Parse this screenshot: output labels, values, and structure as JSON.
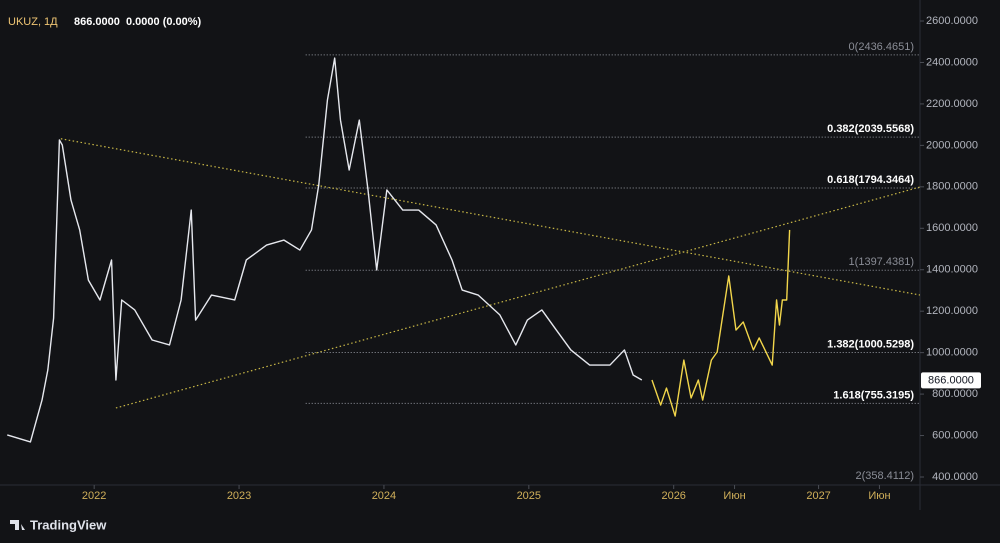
{
  "header": {
    "symbol": "UKUZ, 1Д",
    "last": "866.0000",
    "change": "0.0000 (0.00%)"
  },
  "branding": {
    "logo": "TradingView"
  },
  "chart_data": {
    "type": "line",
    "xlim": [
      2021.35,
      2027.7
    ],
    "ylim": [
      361.4,
      2662.8
    ],
    "xticks": [
      2022,
      2023,
      2024,
      2025,
      2026,
      {
        "value": 2026.42,
        "label": "Июн"
      },
      2027,
      {
        "value": 2027.42,
        "label": "Июн"
      }
    ],
    "yticks": [
      {
        "value": 2600,
        "label": "2600.0000"
      },
      {
        "value": 2400,
        "label": "2400.0000"
      },
      {
        "value": 2200,
        "label": "2200.0000"
      },
      {
        "value": 2000,
        "label": "2000.0000"
      },
      {
        "value": 1800,
        "label": "1800.0000"
      },
      {
        "value": 1600,
        "label": "1600.0000"
      },
      {
        "value": 1400,
        "label": "1400.0000"
      },
      {
        "value": 1200,
        "label": "1200.0000"
      },
      {
        "value": 1000,
        "label": "1000.0000"
      },
      {
        "value": 800,
        "label": "800.0000"
      },
      {
        "value": 600,
        "label": "600.0000"
      },
      {
        "value": 400,
        "label": "400.0000"
      }
    ],
    "series": [
      {
        "color": "#e6e8ee",
        "x": [
          2021.4,
          2021.56,
          2021.64,
          2021.68,
          2021.72,
          2021.76,
          2021.78,
          2021.84,
          2021.9,
          2021.96,
          2022.04,
          2022.12,
          2022.15,
          2022.19,
          2022.28,
          2022.4,
          2022.52,
          2022.6,
          2022.67,
          2022.7,
          2022.81,
          2022.97,
          2023.05,
          2023.19,
          2023.31,
          2023.42,
          2023.5,
          2023.55,
          2023.61,
          2023.66,
          2023.7,
          2023.76,
          2023.83,
          2023.89,
          2023.95,
          2024.02,
          2024.13,
          2024.24,
          2024.36,
          2024.47,
          2024.54,
          2024.65,
          2024.8,
          2024.91,
          2024.99,
          2025.09,
          2025.19,
          2025.29,
          2025.42,
          2025.56,
          2025.66,
          2025.72,
          2025.78
        ],
        "values": [
          603,
          569,
          771,
          916,
          1167,
          2026,
          2002,
          1736,
          1592,
          1350,
          1254,
          1447,
          868,
          1254,
          1206,
          1061,
          1037,
          1254,
          1688,
          1157,
          1278,
          1254,
          1447,
          1519,
          1543,
          1495,
          1592,
          1809,
          2219,
          2421,
          2122,
          1881,
          2122,
          1785,
          1399,
          1785,
          1688,
          1688,
          1616,
          1447,
          1302,
          1278,
          1182,
          1037,
          1157,
          1206,
          1109,
          1013,
          940,
          940,
          1013,
          892,
          868
        ]
      },
      {
        "color": "#f2d64b",
        "x": [
          2025.85,
          2025.91,
          2025.95,
          2026.01,
          2026.07,
          2026.12,
          2026.17,
          2026.2,
          2026.26,
          2026.3,
          2026.38,
          2026.43,
          2026.48,
          2026.55,
          2026.59,
          2026.63,
          2026.68,
          2026.71,
          2026.73,
          2026.75,
          2026.78,
          2026.8
        ],
        "values": [
          868,
          747,
          829,
          694,
          964,
          781,
          868,
          771,
          964,
          1003,
          1370,
          1109,
          1148,
          1013,
          1071,
          1013,
          940,
          1254,
          1133,
          1254,
          1254,
          1592
        ]
      }
    ],
    "trendlines": [
      {
        "color": "#c8b746",
        "x": [
          2021.77,
          2027.7
        ],
        "y": [
          2032,
          1278
        ]
      },
      {
        "color": "#c8b746",
        "x": [
          2022.15,
          2027.7
        ],
        "y": [
          733,
          1799
        ]
      }
    ],
    "fib_start": 2023.46,
    "fib_levels": [
      {
        "value": 2436.4651,
        "label": "0(2436.4651)",
        "color": "#8a8d96"
      },
      {
        "value": 2039.5568,
        "label": "0.382(2039.5568)",
        "color": "#ffffff"
      },
      {
        "value": 1794.3464,
        "label": "0.618(1794.3464)",
        "color": "#ffffff"
      },
      {
        "value": 1397.4381,
        "label": "1(1397.4381)",
        "color": "#8a8d96"
      },
      {
        "value": 1000.5298,
        "label": "1.382(1000.5298)",
        "color": "#ffffff"
      },
      {
        "value": 755.3195,
        "label": "1.618(755.3195)",
        "color": "#ffffff"
      },
      {
        "value": 358.4112,
        "label": "2(358.4112)",
        "color": "#8a8d96"
      }
    ],
    "last_price": {
      "value": 866,
      "label": "866.0000"
    }
  }
}
